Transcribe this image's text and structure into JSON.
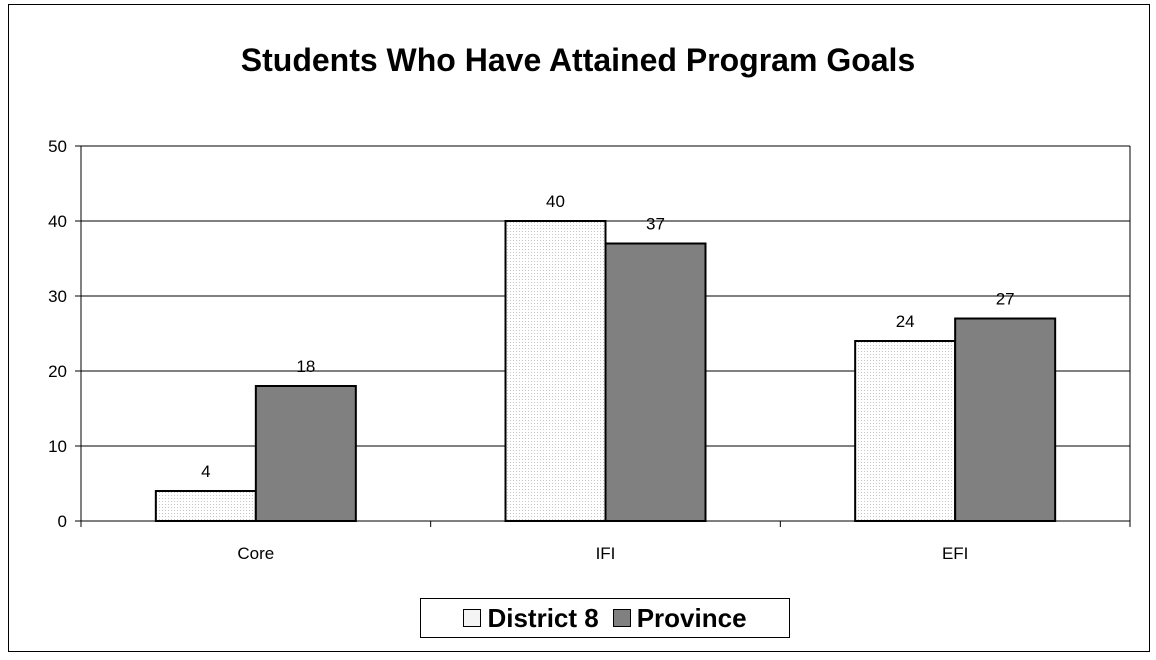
{
  "chart_data": {
    "type": "bar",
    "title": "Students Who Have Attained Program Goals",
    "categories": [
      "Core",
      "IFI",
      "EFI"
    ],
    "series": [
      {
        "name": "District 8",
        "values": [
          4,
          40,
          24
        ],
        "color": "#f4f4f4"
      },
      {
        "name": "Province",
        "values": [
          18,
          37,
          27
        ],
        "color": "#808080"
      }
    ],
    "ylim": [
      0,
      50
    ],
    "yticks": [
      0,
      10,
      20,
      30,
      40,
      50
    ],
    "grid": true,
    "legend": "bottom"
  }
}
